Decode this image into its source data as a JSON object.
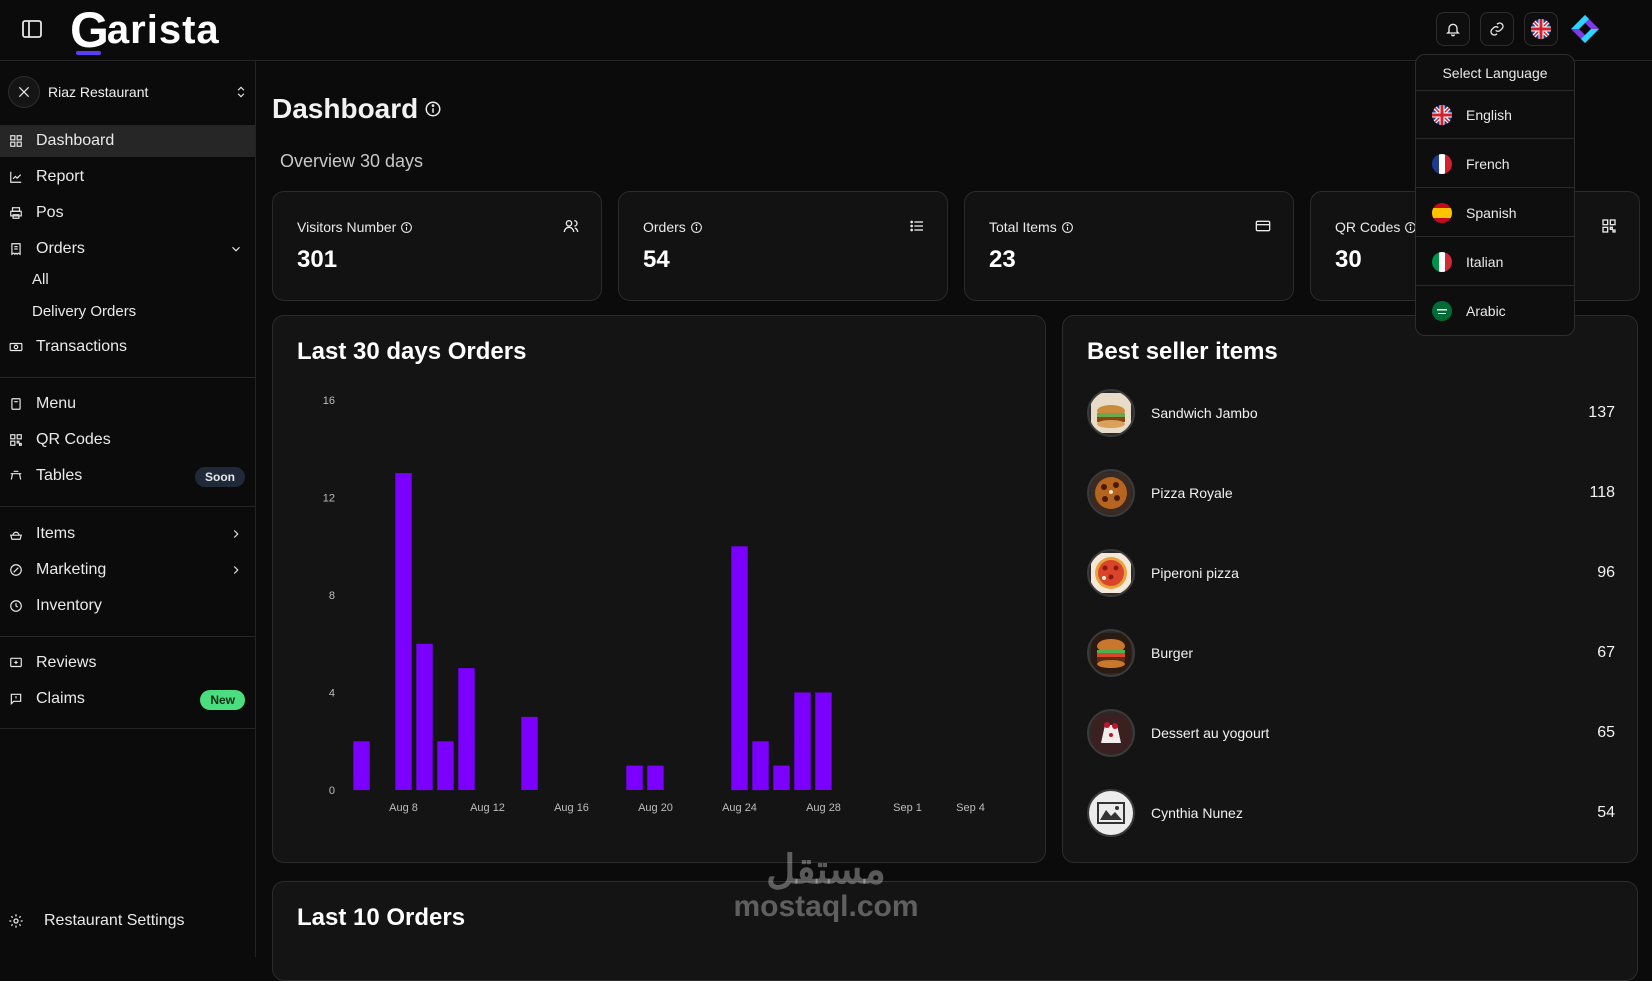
{
  "app": {
    "logo_initial": "G",
    "logo_text": "arista"
  },
  "topbar": {
    "icons": [
      "bell-icon",
      "link-icon",
      "uk-flag-icon",
      "app-mark-icon"
    ]
  },
  "sidebar": {
    "restaurant": "Riaz Restaurant",
    "items": [
      {
        "label": "Dashboard",
        "icon": "grid-icon"
      },
      {
        "label": "Report",
        "icon": "line-chart-icon"
      },
      {
        "label": "Pos",
        "icon": "printer-icon"
      },
      {
        "label": "Orders",
        "icon": "receipt-icon"
      },
      {
        "label": "All"
      },
      {
        "label": "Delivery Orders"
      },
      {
        "label": "Transactions",
        "icon": "cash-icon"
      },
      {
        "label": "Menu",
        "icon": "book-icon"
      },
      {
        "label": "QR Codes",
        "icon": "qr-icon"
      },
      {
        "label": "Tables",
        "icon": "table-icon",
        "badge": "Soon"
      },
      {
        "label": "Items",
        "icon": "food-icon"
      },
      {
        "label": "Marketing",
        "icon": "target-icon"
      },
      {
        "label": "Inventory",
        "icon": "clock-icon"
      },
      {
        "label": "Reviews",
        "icon": "review-icon"
      },
      {
        "label": "Claims",
        "icon": "message-icon",
        "badge": "New"
      }
    ],
    "settings": "Restaurant Settings"
  },
  "dashboard": {
    "title": "Dashboard",
    "subtitle": "Overview 30 days",
    "stats": [
      {
        "label": "Visitors Number",
        "value": "301",
        "icon": "users-icon"
      },
      {
        "label": "Orders",
        "value": "54",
        "icon": "list-icon"
      },
      {
        "label": "Total Items",
        "value": "23",
        "icon": "card-icon"
      },
      {
        "label": "QR Codes",
        "value": "30",
        "icon": "qr-icon"
      }
    ]
  },
  "orders_chart": {
    "title": "Last 30 days Orders"
  },
  "chart_data": {
    "type": "bar",
    "title": "Last 30 days Orders",
    "x": [
      "Aug 6",
      "Aug 7",
      "Aug 8",
      "Aug 9",
      "Aug 10",
      "Aug 11",
      "Aug 12",
      "Aug 13",
      "Aug 14",
      "Aug 15",
      "Aug 16",
      "Aug 17",
      "Aug 18",
      "Aug 19",
      "Aug 20",
      "Aug 21",
      "Aug 22",
      "Aug 23",
      "Aug 24",
      "Aug 25",
      "Aug 26",
      "Aug 27",
      "Aug 28",
      "Aug 29",
      "Aug 30",
      "Aug 31",
      "Sep 1",
      "Sep 2",
      "Sep 3",
      "Sep 4"
    ],
    "values": [
      2,
      0,
      13,
      6,
      2,
      5,
      0,
      0,
      3,
      0,
      0,
      0,
      0,
      1,
      1,
      0,
      0,
      0,
      10,
      2,
      1,
      4,
      4,
      0,
      0,
      0,
      0,
      0,
      0,
      0
    ],
    "x_tick_labels": [
      "Aug 8",
      "Aug 12",
      "Aug 16",
      "Aug 20",
      "Aug 24",
      "Aug 28",
      "Sep 1",
      "Sep 4"
    ],
    "y_ticks": [
      0,
      4,
      8,
      12,
      16
    ],
    "ylim": [
      0,
      16
    ],
    "bar_color": "#7c00ff",
    "grid": false
  },
  "best_sellers": {
    "title": "Best seller items",
    "items": [
      {
        "name": "Sandwich Jambo",
        "count": "137"
      },
      {
        "name": "Pizza Royale",
        "count": "118"
      },
      {
        "name": "Piperoni pizza",
        "count": "96"
      },
      {
        "name": "Burger",
        "count": "67"
      },
      {
        "name": "Dessert au yogourt",
        "count": "65"
      },
      {
        "name": "Cynthia Nunez",
        "count": "54"
      }
    ]
  },
  "last_orders": {
    "title": "Last 10 Orders"
  },
  "language_menu": {
    "title": "Select Language",
    "options": [
      "English",
      "French",
      "Spanish",
      "Italian",
      "Arabic"
    ]
  },
  "watermark": {
    "arabic": "مستقل",
    "latin": "mostaql.com"
  },
  "colors": {
    "accent": "#7c00ff",
    "background": "#0b0b0b",
    "card": "#141414",
    "new_badge": "#4ade80"
  }
}
